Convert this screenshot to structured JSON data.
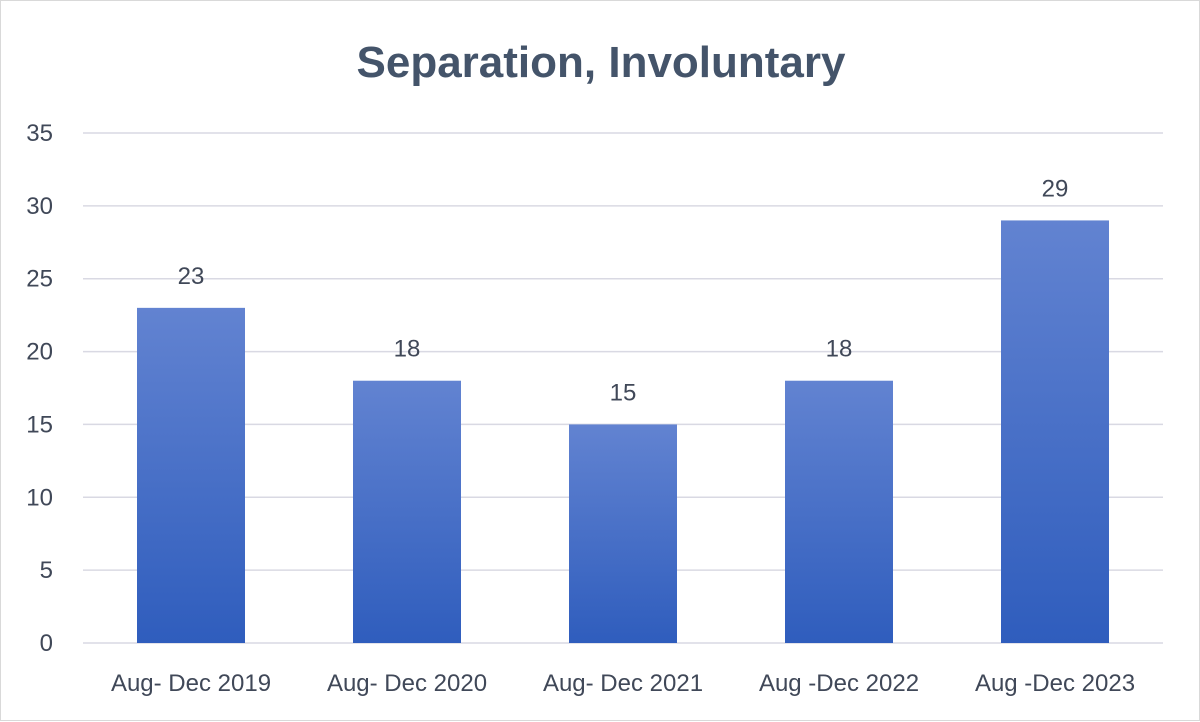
{
  "chart_data": {
    "type": "bar",
    "title": "Separation, Involuntary",
    "xlabel": "",
    "ylabel": "",
    "categories": [
      "Aug- Dec 2019",
      "Aug- Dec 2020",
      "Aug- Dec 2021",
      "Aug -Dec 2022",
      "Aug -Dec 2023"
    ],
    "values": [
      23,
      18,
      15,
      18,
      29
    ],
    "data_labels": [
      "23",
      "18",
      "15",
      "18",
      "29"
    ],
    "ylim": [
      0,
      35
    ],
    "yticks": [
      0,
      5,
      10,
      15,
      20,
      25,
      30,
      35
    ],
    "ytick_labels": [
      "0",
      "5",
      "10",
      "15",
      "20",
      "25",
      "30",
      "35"
    ],
    "grid": true,
    "legend": "none",
    "colors": {
      "bar_top": "#6283d1",
      "bar_bottom": "#2f5dbd",
      "title": "#44546a",
      "text": "#404858",
      "grid": "#d9d9e3"
    }
  }
}
